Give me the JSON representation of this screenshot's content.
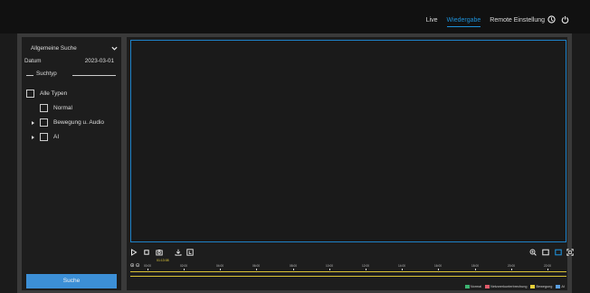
{
  "nav": {
    "tabs": [
      {
        "label": "Live"
      },
      {
        "label": "Wiedergabe",
        "active": true
      },
      {
        "label": "Remote Einstellung"
      }
    ],
    "icons": [
      "help-icon",
      "power-icon"
    ]
  },
  "sidebar": {
    "search_type_label": "Allgemeine Suche",
    "date_label": "Datum",
    "date_value": "2023-03-01",
    "section_title": "Suchtyp",
    "types": [
      {
        "label": "Alle Typen",
        "expandable": false,
        "indent": 0
      },
      {
        "label": "Normal",
        "expandable": false,
        "indent": 1
      },
      {
        "label": "Bewegung u. Audio",
        "expandable": true,
        "indent": 1
      },
      {
        "label": "AI",
        "expandable": true,
        "indent": 1
      }
    ],
    "search_button": "Suche"
  },
  "timeline": {
    "current_time": "01:13:08",
    "ticks": [
      "00:00",
      "02:00",
      "04:00",
      "06:00",
      "08:00",
      "10:00",
      "12:00",
      "14:00",
      "16:00",
      "18:00",
      "20:00",
      "22:00"
    ]
  },
  "legend": [
    {
      "label": "Normal",
      "color": "#3cb371"
    },
    {
      "label": "Netzwerkunterbrechung",
      "color": "#e05a6a"
    },
    {
      "label": "Bewegung",
      "color": "#e8d03a"
    },
    {
      "label": "AI",
      "color": "#5a9ee0"
    }
  ],
  "colors": {
    "accent": "#1e90d8",
    "video_border": "#1e82c8",
    "timeline": "#d9c236"
  }
}
